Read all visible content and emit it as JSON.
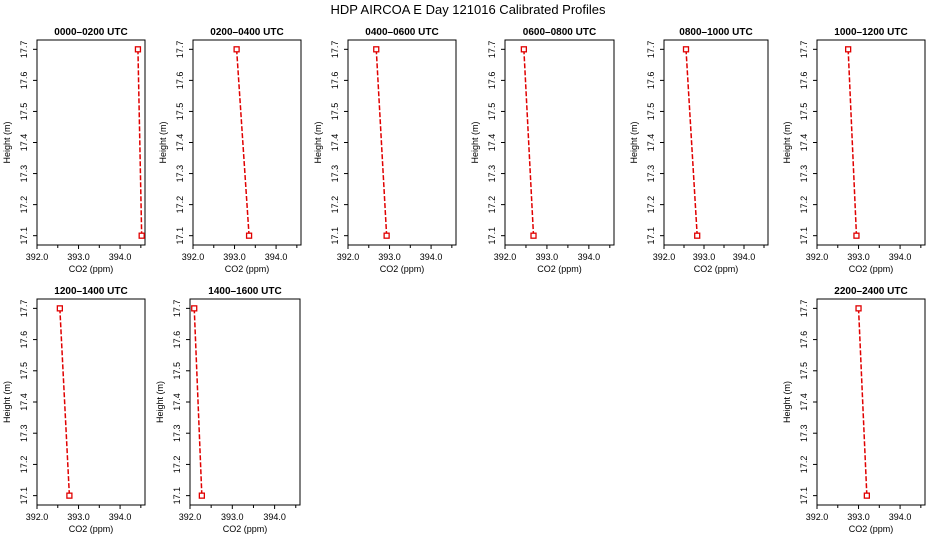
{
  "title": "HDP AIRCOA E  Day 121016  Calibrated Profiles",
  "colors": {
    "series": "#e00000",
    "axis": "#000000",
    "background": "#ffffff"
  },
  "chart_data": [
    {
      "type": "line",
      "title": "0000–0200 UTC",
      "xlabel": "CO2 (ppm)",
      "ylabel": "Height (m)",
      "xlim": [
        392.0,
        394.6
      ],
      "ylim": [
        17.07,
        17.73
      ],
      "xticks": [
        "392.0",
        "393.0",
        "394.0"
      ],
      "yticks": [
        "17.1",
        "17.2",
        "17.3",
        "17.4",
        "17.5",
        "17.6",
        "17.7"
      ],
      "points": [
        {
          "x": 394.43,
          "y": 17.7
        },
        {
          "x": 394.52,
          "y": 17.1
        }
      ]
    },
    {
      "type": "line",
      "title": "0200–0400 UTC",
      "xlabel": "CO2 (ppm)",
      "ylabel": "Height (m)",
      "xlim": [
        392.0,
        394.6
      ],
      "ylim": [
        17.07,
        17.73
      ],
      "xticks": [
        "392.0",
        "393.0",
        "394.0"
      ],
      "yticks": [
        "17.1",
        "17.2",
        "17.3",
        "17.4",
        "17.5",
        "17.6",
        "17.7"
      ],
      "points": [
        {
          "x": 393.05,
          "y": 17.7
        },
        {
          "x": 393.35,
          "y": 17.1
        }
      ]
    },
    {
      "type": "line",
      "title": "0400–0600 UTC",
      "xlabel": "CO2 (ppm)",
      "ylabel": "Height (m)",
      "xlim": [
        392.0,
        394.6
      ],
      "ylim": [
        17.07,
        17.73
      ],
      "xticks": [
        "392.0",
        "393.0",
        "394.0"
      ],
      "yticks": [
        "17.1",
        "17.2",
        "17.3",
        "17.4",
        "17.5",
        "17.6",
        "17.7"
      ],
      "points": [
        {
          "x": 392.68,
          "y": 17.7
        },
        {
          "x": 392.93,
          "y": 17.1
        }
      ]
    },
    {
      "type": "line",
      "title": "0600–0800 UTC",
      "xlabel": "CO2 (ppm)",
      "ylabel": "Height (m)",
      "xlim": [
        392.0,
        394.6
      ],
      "ylim": [
        17.07,
        17.73
      ],
      "xticks": [
        "392.0",
        "393.0",
        "394.0"
      ],
      "yticks": [
        "17.1",
        "17.2",
        "17.3",
        "17.4",
        "17.5",
        "17.6",
        "17.7"
      ],
      "points": [
        {
          "x": 392.45,
          "y": 17.7
        },
        {
          "x": 392.68,
          "y": 17.1
        }
      ]
    },
    {
      "type": "line",
      "title": "0800–1000 UTC",
      "xlabel": "CO2 (ppm)",
      "ylabel": "Height (m)",
      "xlim": [
        392.0,
        394.6
      ],
      "ylim": [
        17.07,
        17.73
      ],
      "xticks": [
        "392.0",
        "393.0",
        "394.0"
      ],
      "yticks": [
        "17.1",
        "17.2",
        "17.3",
        "17.4",
        "17.5",
        "17.6",
        "17.7"
      ],
      "points": [
        {
          "x": 392.55,
          "y": 17.7
        },
        {
          "x": 392.83,
          "y": 17.1
        }
      ]
    },
    {
      "type": "line",
      "title": "1000–1200 UTC",
      "xlabel": "CO2 (ppm)",
      "ylabel": "Height (m)",
      "xlim": [
        392.0,
        394.6
      ],
      "ylim": [
        17.07,
        17.73
      ],
      "xticks": [
        "392.0",
        "393.0",
        "394.0"
      ],
      "yticks": [
        "17.1",
        "17.2",
        "17.3",
        "17.4",
        "17.5",
        "17.6",
        "17.7"
      ],
      "points": [
        {
          "x": 392.75,
          "y": 17.7
        },
        {
          "x": 392.95,
          "y": 17.1
        }
      ]
    },
    {
      "type": "line",
      "title": "1200–1400 UTC",
      "xlabel": "CO2 (ppm)",
      "ylabel": "Height (m)",
      "xlim": [
        392.0,
        394.6
      ],
      "ylim": [
        17.07,
        17.73
      ],
      "xticks": [
        "392.0",
        "393.0",
        "394.0"
      ],
      "yticks": [
        "17.1",
        "17.2",
        "17.3",
        "17.4",
        "17.5",
        "17.6",
        "17.7"
      ],
      "points": [
        {
          "x": 392.55,
          "y": 17.7
        },
        {
          "x": 392.78,
          "y": 17.1
        }
      ]
    },
    {
      "type": "line",
      "title": "1400–1600 UTC",
      "xlabel": "CO2 (ppm)",
      "ylabel": "Height (m)",
      "xlim": [
        392.0,
        394.6
      ],
      "ylim": [
        17.07,
        17.73
      ],
      "xticks": [
        "392.0",
        "393.0",
        "394.0"
      ],
      "yticks": [
        "17.1",
        "17.2",
        "17.3",
        "17.4",
        "17.5",
        "17.6",
        "17.7"
      ],
      "points": [
        {
          "x": 392.1,
          "y": 17.7
        },
        {
          "x": 392.28,
          "y": 17.1
        }
      ]
    },
    {
      "type": "line",
      "title": "2200–2400 UTC",
      "xlabel": "CO2 (ppm)",
      "ylabel": "Height (m)",
      "xlim": [
        392.0,
        394.6
      ],
      "ylim": [
        17.07,
        17.73
      ],
      "xticks": [
        "392.0",
        "393.0",
        "394.0"
      ],
      "yticks": [
        "17.1",
        "17.2",
        "17.3",
        "17.4",
        "17.5",
        "17.6",
        "17.7"
      ],
      "points": [
        {
          "x": 393.0,
          "y": 17.7
        },
        {
          "x": 393.2,
          "y": 17.1
        }
      ]
    }
  ]
}
